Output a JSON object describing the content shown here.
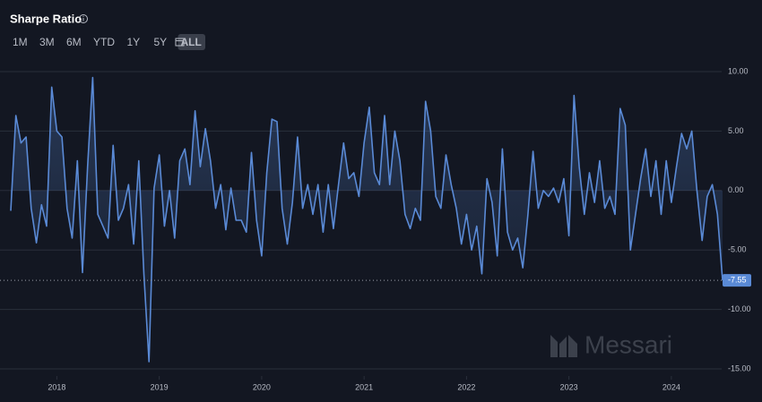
{
  "controls": {
    "ranges": [
      "1M",
      "3M",
      "6M",
      "YTD",
      "1Y",
      "5Y",
      "ALL"
    ],
    "active": "ALL"
  },
  "watermark": "Messari",
  "chart_data": {
    "type": "line",
    "title": "Sharpe Ratio",
    "x": [
      2017.55,
      2017.6,
      2017.65,
      2017.7,
      2017.75,
      2017.8,
      2017.85,
      2017.9,
      2017.95,
      2018.0,
      2018.05,
      2018.1,
      2018.15,
      2018.2,
      2018.25,
      2018.3,
      2018.35,
      2018.4,
      2018.45,
      2018.5,
      2018.55,
      2018.6,
      2018.65,
      2018.7,
      2018.75,
      2018.8,
      2018.85,
      2018.9,
      2018.95,
      2019.0,
      2019.05,
      2019.1,
      2019.15,
      2019.2,
      2019.25,
      2019.3,
      2019.35,
      2019.4,
      2019.45,
      2019.5,
      2019.55,
      2019.6,
      2019.65,
      2019.7,
      2019.75,
      2019.8,
      2019.85,
      2019.9,
      2019.95,
      2020.0,
      2020.05,
      2020.1,
      2020.15,
      2020.2,
      2020.25,
      2020.3,
      2020.35,
      2020.4,
      2020.45,
      2020.5,
      2020.55,
      2020.6,
      2020.65,
      2020.7,
      2020.75,
      2020.8,
      2020.85,
      2020.9,
      2020.95,
      2021.0,
      2021.05,
      2021.1,
      2021.15,
      2021.2,
      2021.25,
      2021.3,
      2021.35,
      2021.4,
      2021.45,
      2021.5,
      2021.55,
      2021.6,
      2021.65,
      2021.7,
      2021.75,
      2021.8,
      2021.85,
      2021.9,
      2021.95,
      2022.0,
      2022.05,
      2022.1,
      2022.15,
      2022.2,
      2022.25,
      2022.3,
      2022.35,
      2022.4,
      2022.45,
      2022.5,
      2022.55,
      2022.6,
      2022.65,
      2022.7,
      2022.75,
      2022.8,
      2022.85,
      2022.9,
      2022.95,
      2023.0,
      2023.05,
      2023.1,
      2023.15,
      2023.2,
      2023.25,
      2023.3,
      2023.35,
      2023.4,
      2023.45,
      2023.5,
      2023.55,
      2023.6,
      2023.65,
      2023.7,
      2023.75,
      2023.8,
      2023.85,
      2023.9,
      2023.95,
      2024.0,
      2024.05,
      2024.1,
      2024.15,
      2024.2,
      2024.25,
      2024.3,
      2024.35,
      2024.4,
      2024.45,
      2024.5
    ],
    "series": [
      {
        "color": "#5a8ad6",
        "values": [
          -1.7,
          6.3,
          4,
          4.5,
          -1.5,
          -4.4,
          -1.2,
          -3,
          8.7,
          5,
          4.5,
          -1.5,
          -4,
          2.5,
          -6.9,
          2,
          9.5,
          -2,
          -3,
          -4,
          3.8,
          -2.5,
          -1.5,
          0.5,
          -4.5,
          2.5,
          -7,
          -14.4,
          0.2,
          3,
          -3,
          0,
          -4,
          2.5,
          3.5,
          0.5,
          6.7,
          2,
          5.2,
          2.5,
          -1.5,
          0.5,
          -3.3,
          0.2,
          -2.5,
          -2.5,
          -3.5,
          3.2,
          -2.5,
          -5.5,
          1.5,
          6,
          5.8,
          -1.5,
          -4.5,
          -1,
          4.5,
          -1.5,
          0.5,
          -2,
          0.5,
          -3.5,
          0.5,
          -3.2,
          0.5,
          4,
          1,
          1.5,
          -0.5,
          4,
          7,
          1.5,
          0.5,
          6.3,
          0.5,
          5,
          2.5,
          -2,
          -3.2,
          -1.5,
          -2.5,
          7.5,
          5,
          -0.5,
          -1.5,
          3,
          0.5,
          -1.5,
          -4.5,
          -2,
          -5,
          -3,
          -7,
          1,
          -1,
          -5.5,
          3.5,
          -3.5,
          -5,
          -4,
          -6.5,
          -2,
          3.3,
          -1.5,
          0,
          -0.5,
          0.2,
          -1,
          1,
          -3.8,
          8,
          2,
          -2,
          1.5,
          -1,
          2.5,
          -1.5,
          -0.5,
          -2,
          6.9,
          5.5,
          -5,
          -2,
          1,
          3.5,
          -0.5,
          2.5,
          -2,
          2.5,
          -1,
          2,
          4.8,
          3.5,
          5,
          0,
          -4.2,
          -0.5,
          0.5,
          -2,
          -7.55
        ]
      }
    ],
    "xlim": [
      2017.55,
      2024.5
    ],
    "xticks": [
      2018,
      2019,
      2020,
      2021,
      2022,
      2023,
      2024
    ],
    "ylim": [
      -15,
      10
    ],
    "yticks": [
      {
        "value": 10,
        "label": "10.00"
      },
      {
        "value": 5,
        "label": "5.00"
      },
      {
        "value": 0,
        "label": "0.00"
      },
      {
        "value": -5,
        "label": "-5.00"
      },
      {
        "value": -10,
        "label": "-10.00"
      },
      {
        "value": -15,
        "label": "-15.00"
      }
    ],
    "grid": true
  }
}
